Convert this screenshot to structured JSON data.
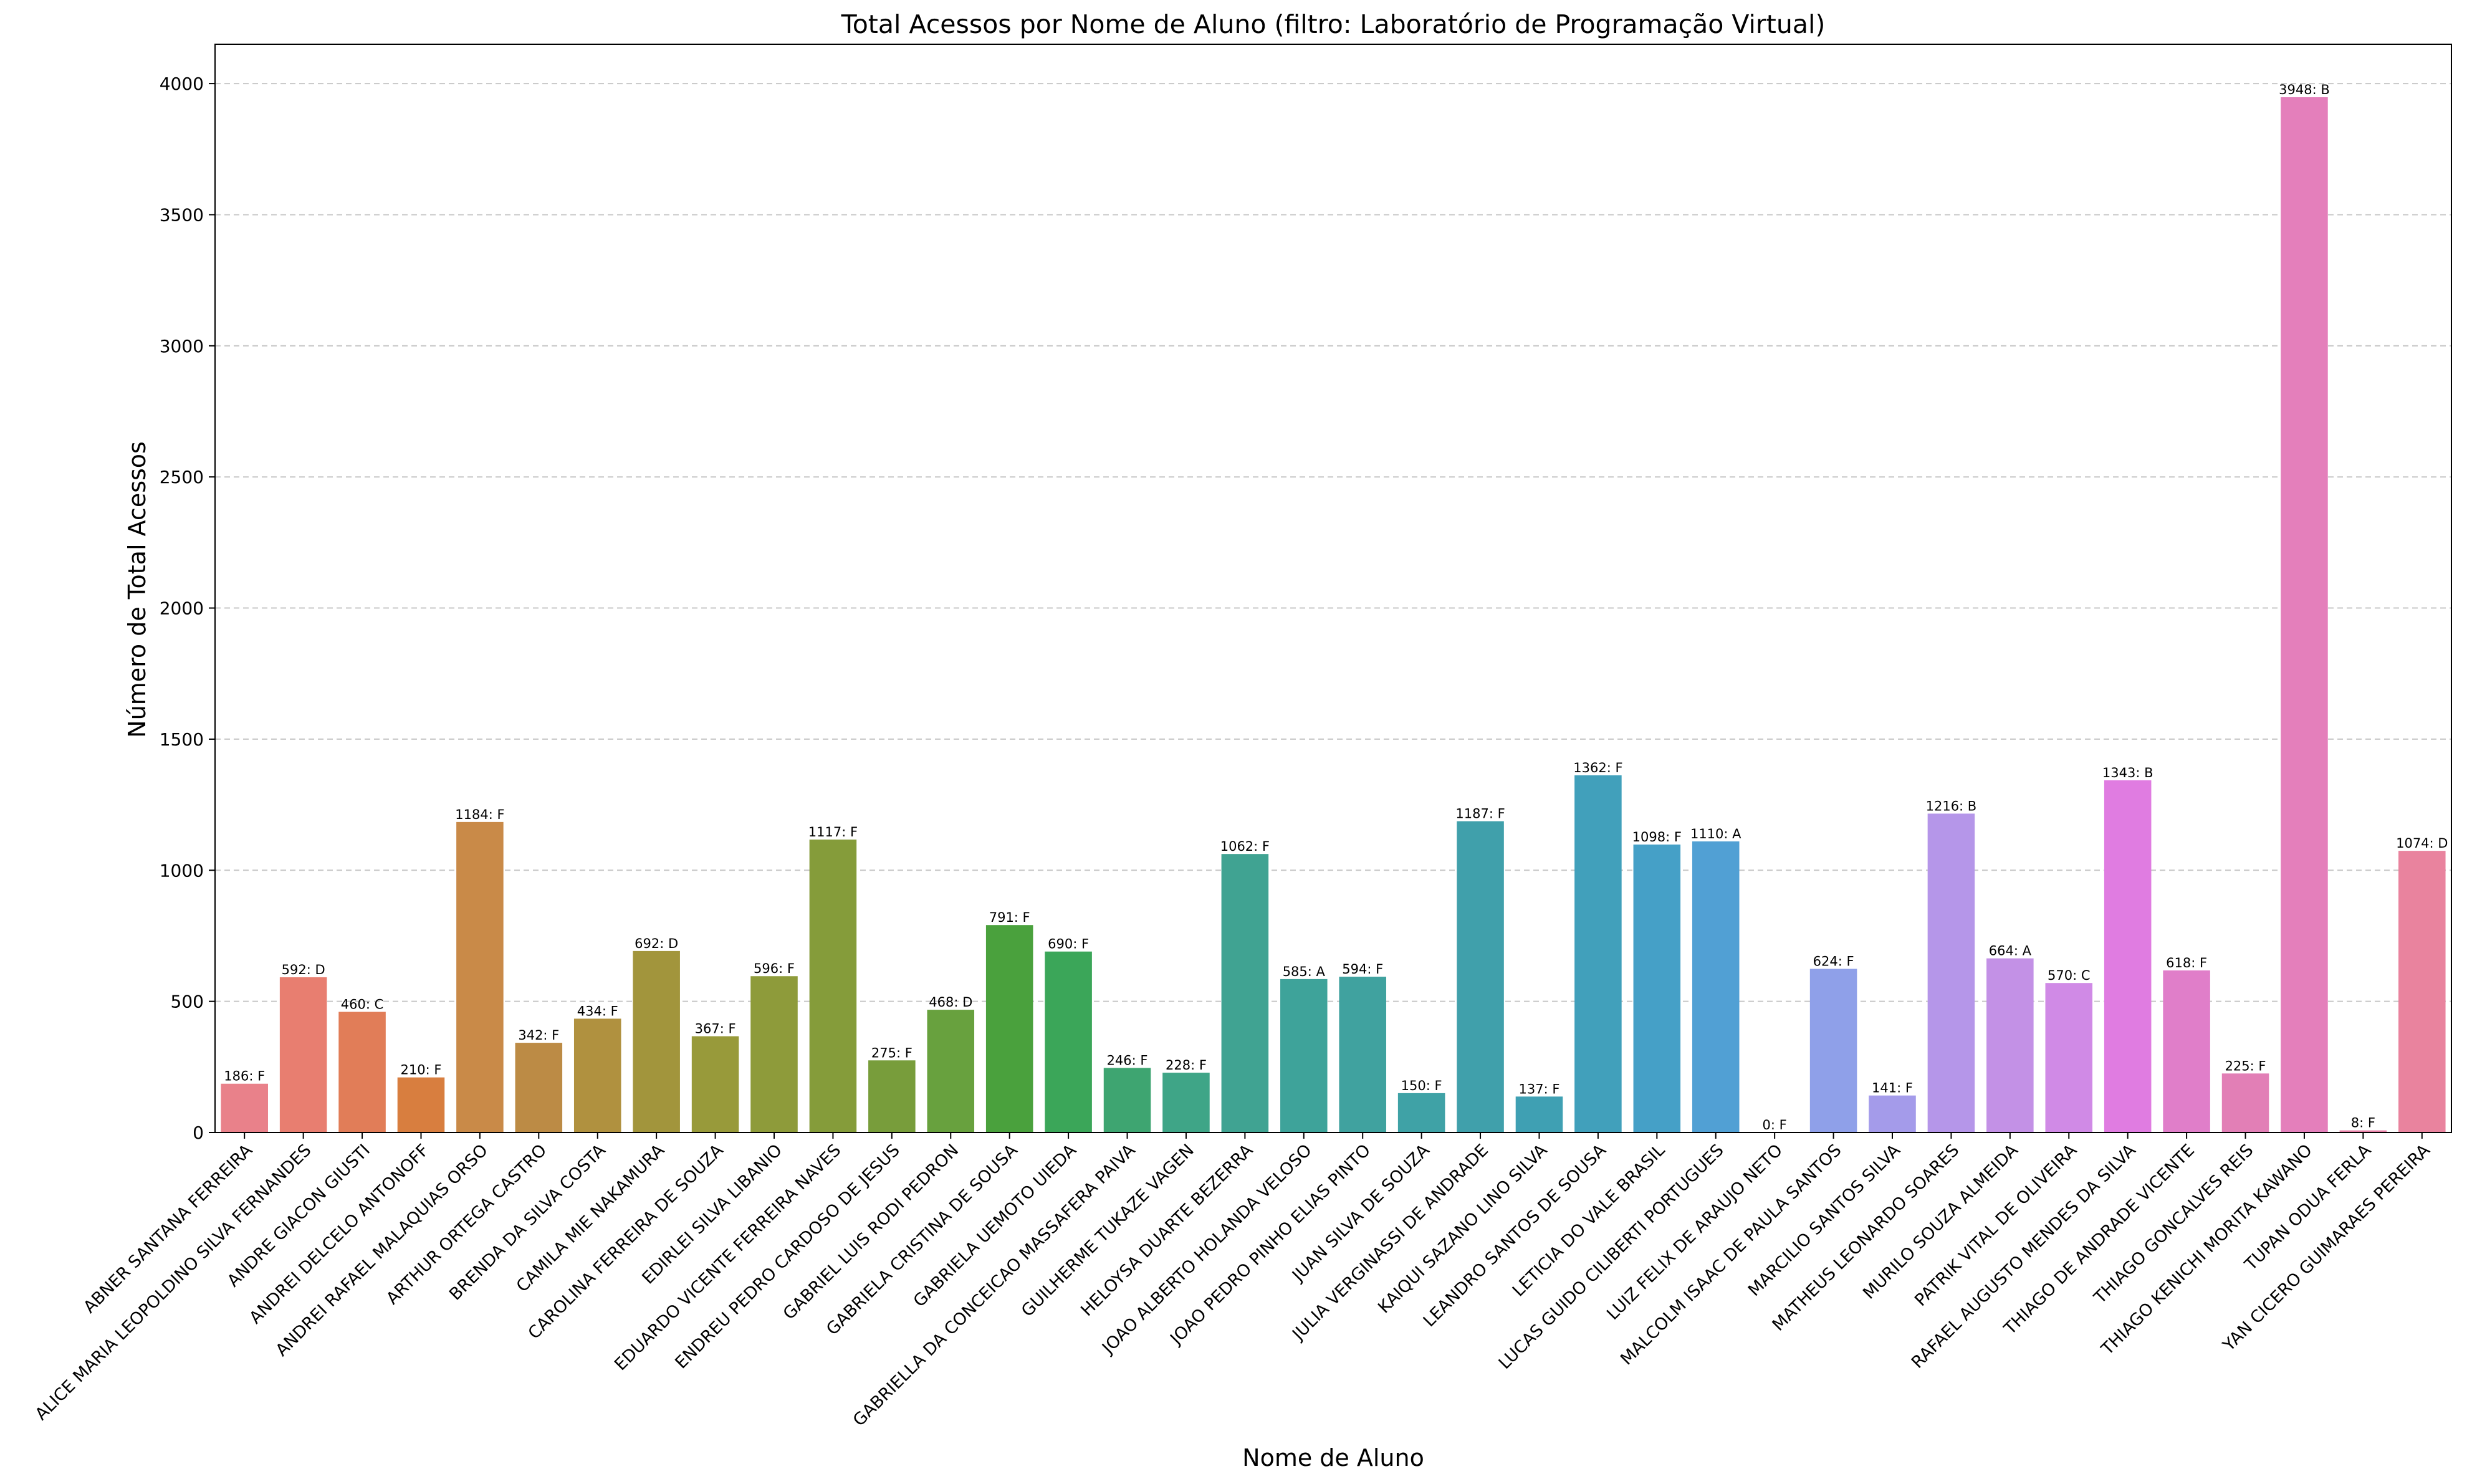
{
  "chart_data": {
    "type": "bar",
    "title": "Total Acessos por Nome de Aluno (filtro: Laboratório de Programação Virtual)",
    "xlabel": "Nome de Aluno",
    "ylabel": "Número de Total Acessos",
    "ylim": [
      0,
      4150
    ],
    "yticks": [
      0,
      500,
      1000,
      1500,
      2000,
      2500,
      3000,
      3500,
      4000
    ],
    "grid": "y",
    "categories": [
      "ABNER SANTANA FERREIRA",
      "ALICE MARIA LEOPOLDINO SILVA FERNANDES",
      "ANDRE GIACON GIUSTI",
      "ANDREI DELCELO ANTONOFF",
      "ANDREI RAFAEL MALAQUIAS ORSO",
      "ARTHUR ORTEGA CASTRO",
      "BRENDA DA SILVA COSTA",
      "CAMILA MIE NAKAMURA",
      "CAROLINA FERREIRA DE SOUZA",
      "EDIRLEI SILVA LIBANIO",
      "EDUARDO VICENTE FERREIRA NAVES",
      "ENDREU PEDRO CARDOSO DE JESUS",
      "GABRIEL LUIS RODI PEDRON",
      "GABRIELA CRISTINA DE SOUSA",
      "GABRIELA UEMOTO UIEDA",
      "GABRIELLA DA CONCEICAO MASSAFERA PAIVA",
      "GUILHERME TUKAZE VAGEN",
      "HELOYSA DUARTE BEZERRA",
      "JOAO ALBERTO HOLANDA VELOSO",
      "JOAO PEDRO PINHO ELIAS PINTO",
      "JUAN SILVA DE SOUZA",
      "JULIA VERGINASSI DE ANDRADE",
      "KAIQUI SAZANO LINO SILVA",
      "LEANDRO SANTOS DE SOUSA",
      "LETICIA DO VALE BRASIL",
      "LUCAS GUIDO CILIBERTI PORTUGUES",
      "LUIZ FELIX DE ARAUJO NETO",
      "MALCOLM ISAAC DE PAULA SANTOS",
      "MARCILIO SANTOS SILVA",
      "MATHEUS LEONARDO SOARES",
      "MURILO SOUZA ALMEIDA",
      "PATRIK VITAL DE OLIVEIRA",
      "RAFAEL AUGUSTO MENDES DA SILVA",
      "THIAGO DE ANDRADE VICENTE",
      "THIAGO GONCALVES REIS",
      "THIAGO KENICHI MORITA KAWANO",
      "TUPAN ODUA FERLA",
      "YAN CICERO GUIMARAES PEREIRA"
    ],
    "values": [
      186,
      592,
      460,
      210,
      1184,
      342,
      434,
      692,
      367,
      596,
      1117,
      275,
      468,
      791,
      690,
      246,
      228,
      1062,
      585,
      594,
      150,
      1187,
      137,
      1362,
      1098,
      1110,
      0,
      624,
      141,
      1216,
      664,
      570,
      1343,
      618,
      225,
      3948,
      8,
      1074
    ],
    "data_labels": [
      "186: F",
      "592: D",
      "460: C",
      "210: F",
      "1184: F",
      "342: F",
      "434: F",
      "692: D",
      "367: F",
      "596: F",
      "1117: F",
      "275: F",
      "468: D",
      "791: F",
      "690: F",
      "246: F",
      "228: F",
      "1062: F",
      "585: A",
      "594: F",
      "150: F",
      "1187: F",
      "137: F",
      "1362: F",
      "1098: F",
      "1110: A",
      "0: F",
      "624: F",
      "141: F",
      "1216: B",
      "664: A",
      "570: C",
      "1343: B",
      "618: F",
      "225: F",
      "3948: B",
      "8: F",
      "1074: D"
    ],
    "colors": [
      "#e9818a",
      "#e87e70",
      "#e17d58",
      "#d87e3f",
      "#c98a48",
      "#bc8b45",
      "#b0913f",
      "#a2953c",
      "#989a3a",
      "#8e9b3a",
      "#859c3a",
      "#789d3b",
      "#68a13e",
      "#4aa13d",
      "#3ba659",
      "#3ea571",
      "#3fa587",
      "#40a392",
      "#3ea39a",
      "#40a29f",
      "#3fa2a6",
      "#40a0ab",
      "#3fa0b3",
      "#41a0bb",
      "#45a0c7",
      "#51a0d4",
      "#7aa4e2",
      "#8fa0e9",
      "#a49bea",
      "#b596e9",
      "#c391e6",
      "#d08ae6",
      "#e07ce1",
      "#e07ec9",
      "#e27fb6",
      "#e47fbb",
      "#e780a6",
      "#e9839e"
    ]
  }
}
